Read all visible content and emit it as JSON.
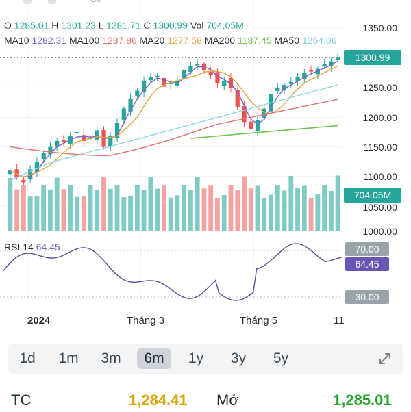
{
  "top": {
    "ticker_hint": "Gx"
  },
  "ohlc": {
    "o_label": "O",
    "o": "1285.01",
    "h_label": "H",
    "h": "1301.23",
    "l_label": "L",
    "l": "1281.71",
    "c_label": "C",
    "c": "1300.99",
    "vol_label": "Vol",
    "vol": "704,05M"
  },
  "ma": {
    "ma10_label": "MA10",
    "ma10": "1282.31",
    "ma100_label": "MA100",
    "ma100": "1237.86",
    "ma20_label": "MA20",
    "ma20": "1277.58",
    "ma200_label": "MA200",
    "ma200": "1187.45",
    "ma50_label": "MA50",
    "ma50": "1254.06"
  },
  "price_axis": [
    "1350.00",
    "1300.00",
    "1250.00",
    "1200.00",
    "1150.00",
    "1100.00",
    "1050.00",
    "1000.00"
  ],
  "tags": {
    "last_price": "1300.99",
    "last_volume": "704.05M",
    "rsi_upper": "70.00",
    "rsi_value": "64.45",
    "rsi_lower": "30.00"
  },
  "rsi": {
    "label": "RSI 14",
    "value": "64.45"
  },
  "x_axis": [
    "2024",
    "Tháng 3",
    "Tháng 5",
    "11"
  ],
  "ranges": [
    {
      "label": "1d",
      "active": false
    },
    {
      "label": "1m",
      "active": false
    },
    {
      "label": "3m",
      "active": false
    },
    {
      "label": "6m",
      "active": true
    },
    {
      "label": "1y",
      "active": false
    },
    {
      "label": "3y",
      "active": false
    },
    {
      "label": "5y",
      "active": false
    }
  ],
  "stats": {
    "tc_label": "TC",
    "tc_value": "1,284.41",
    "open_label": "Mở",
    "open_value": "1,285.01"
  },
  "colors": {
    "up": "#26a69a",
    "down": "#ef5350",
    "vol_up": "#80cbc4",
    "vol_down": "#f4a3a0",
    "ma10": "#7a63c9",
    "ma20": "#e7a43d",
    "ma50": "#8fd6ea",
    "ma100": "#e0736c",
    "ma200": "#6fc34e",
    "rsi": "#5c4b9f",
    "tag_price": "#26a69a",
    "tag_rsi": "#6a55b5",
    "tag_grey": "#9aa3a8",
    "tc": "#d9a400",
    "open": "#23a32b"
  },
  "chart_data": {
    "type": "candlestick",
    "title": "",
    "x_labels": [
      "2024",
      "Tháng 3",
      "Tháng 5",
      "11"
    ],
    "ylim": [
      1000,
      1360
    ],
    "last": {
      "open": 1285.01,
      "high": 1301.23,
      "low": 1281.71,
      "close": 1300.99,
      "volume": "704,05M"
    },
    "close_path": [
      1110,
      1098,
      1090,
      1112,
      1125,
      1140,
      1150,
      1160,
      1158,
      1168,
      1175,
      1160,
      1165,
      1178,
      1150,
      1168,
      1190,
      1215,
      1232,
      1245,
      1262,
      1268,
      1270,
      1252,
      1258,
      1262,
      1280,
      1287,
      1290,
      1280,
      1272,
      1258,
      1262,
      1250,
      1218,
      1192,
      1180,
      1195,
      1215,
      1240,
      1250,
      1255,
      1260,
      1268,
      1275,
      1278,
      1282,
      1290,
      1295,
      1300.99
    ],
    "ma_values": {
      "MA10": 1282.31,
      "MA20": 1277.58,
      "MA50": 1254.06,
      "MA100": 1237.86,
      "MA200": 1187.45
    },
    "rsi": {
      "period": 14,
      "value": 64.45,
      "upper": 70,
      "lower": 30
    }
  }
}
